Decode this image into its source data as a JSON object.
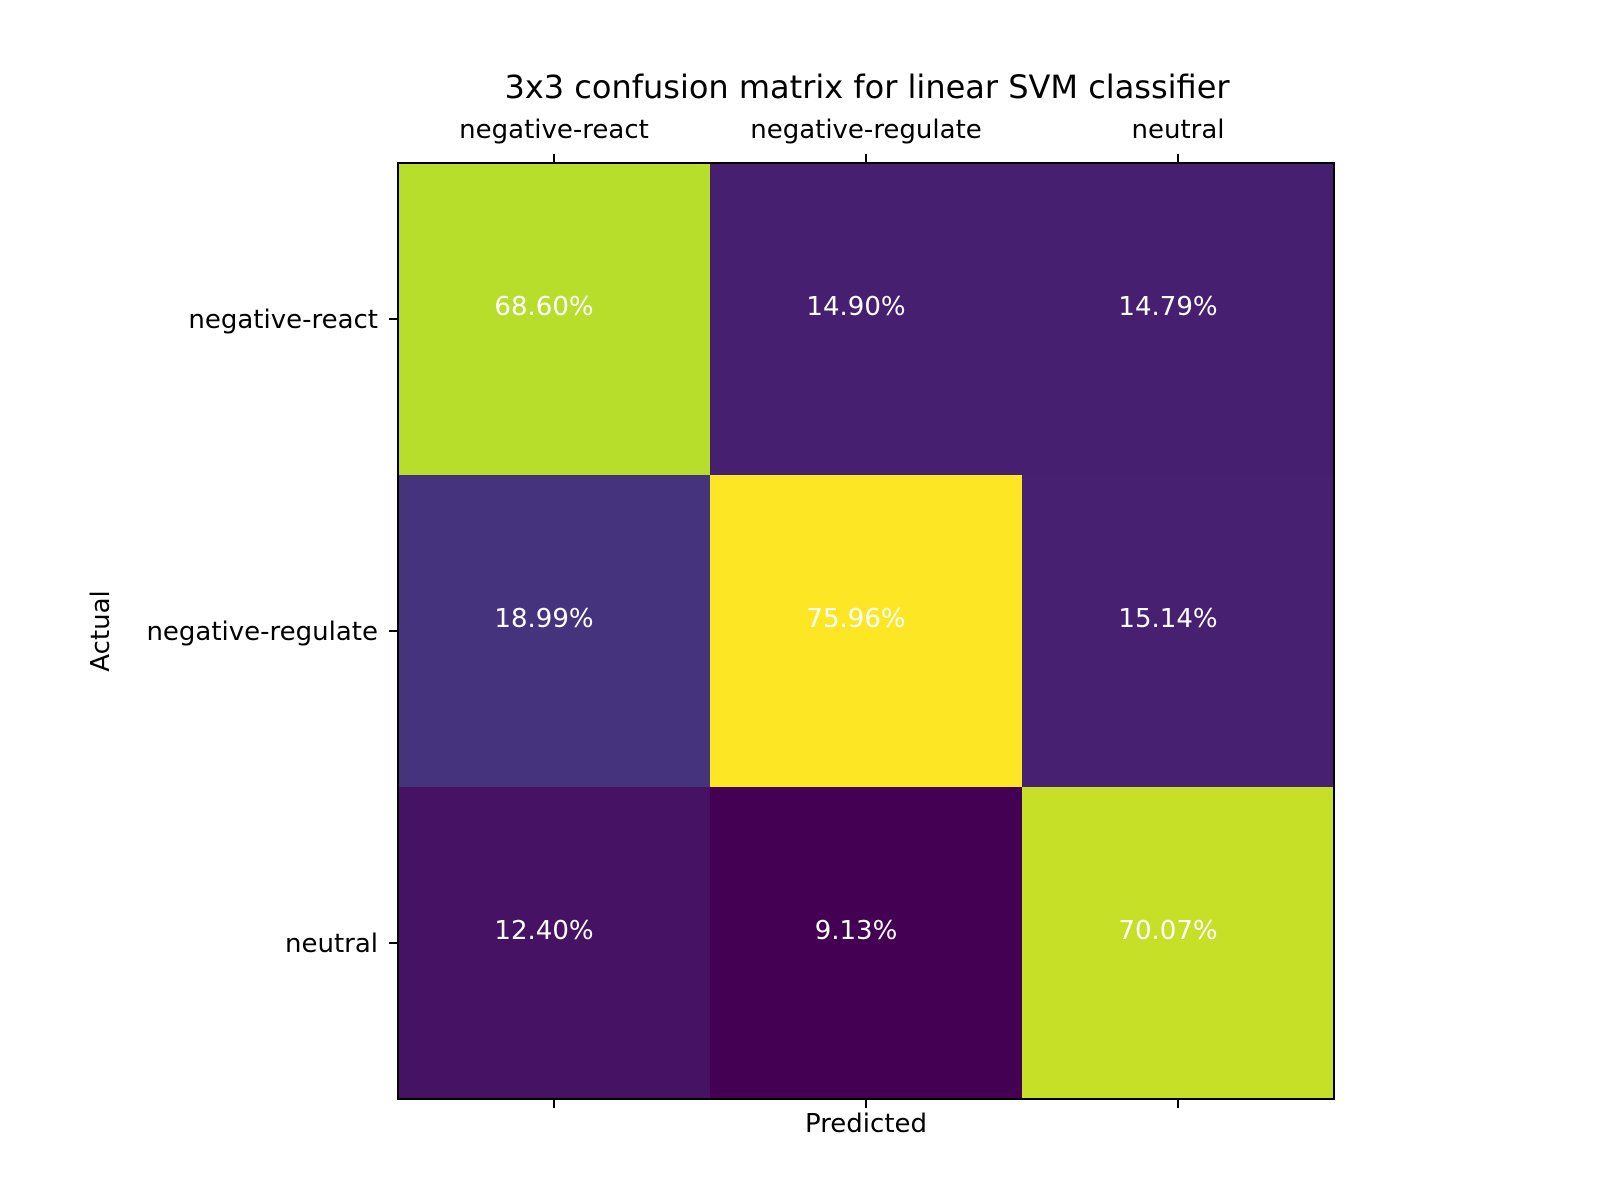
{
  "chart_data": {
    "type": "heatmap",
    "title": "3x3 confusion matrix for linear SVM classifier",
    "xlabel": "Predicted",
    "ylabel": "Actual",
    "x_categories": [
      "negative-react",
      "negative-regulate",
      "neutral"
    ],
    "y_categories": [
      "negative-react",
      "negative-regulate",
      "neutral"
    ],
    "values": [
      [
        68.6,
        14.9,
        14.79
      ],
      [
        18.99,
        75.96,
        15.14
      ],
      [
        12.4,
        9.13,
        70.07
      ]
    ],
    "cell_labels": [
      [
        "68.60%",
        "14.90%",
        "14.79%"
      ],
      [
        "18.99%",
        "75.96%",
        "15.14%"
      ],
      [
        "12.40%",
        "9.13%",
        "70.07%"
      ]
    ],
    "colormap": "viridis",
    "color_range": [
      9.13,
      75.96
    ],
    "x_tick_position": "top",
    "grid": false
  }
}
